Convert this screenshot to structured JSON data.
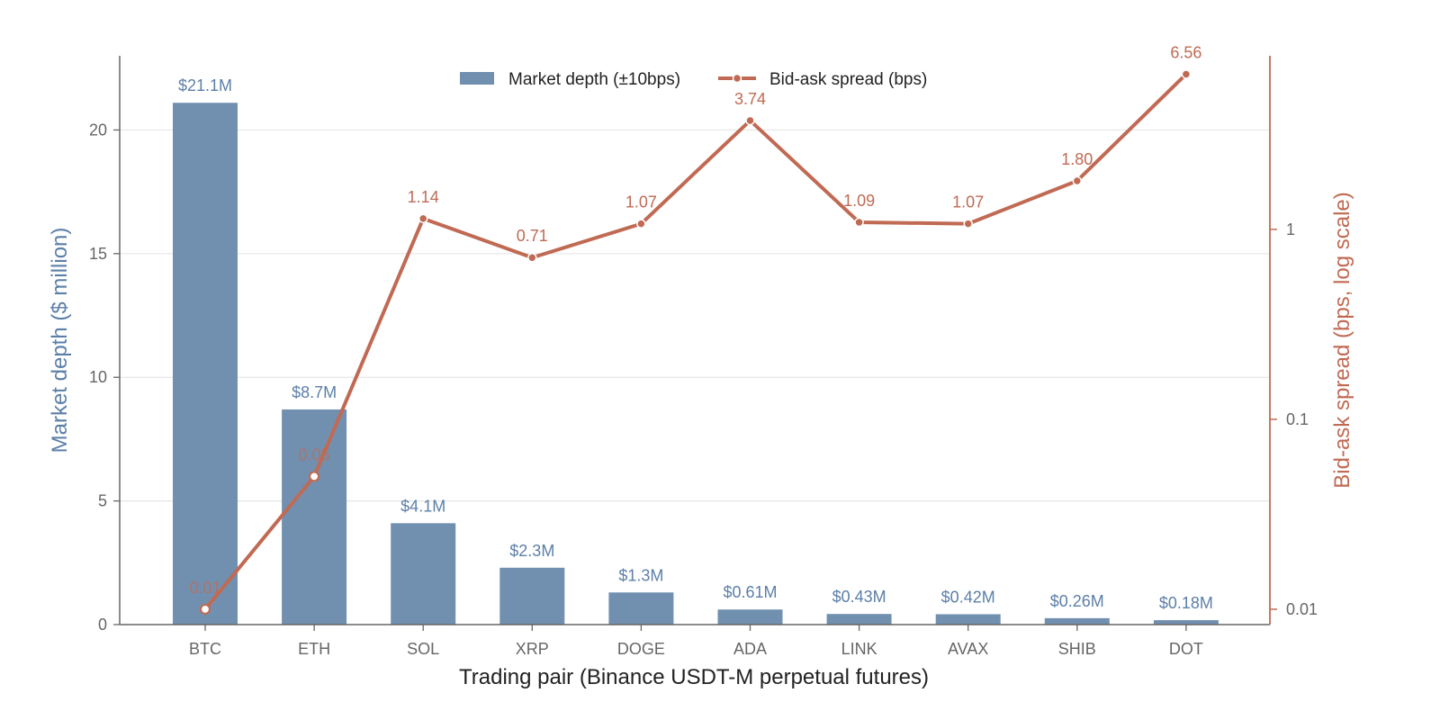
{
  "colors": {
    "depth": "#7190b0",
    "depth_text": "#5c7fa8",
    "spread": "#c06a54",
    "axis": "#666666",
    "grid": "#e6e6e6"
  },
  "chart_data": {
    "type": "bar",
    "title": "",
    "xlabel": "Trading pair (Binance USDT-M perpetual futures)",
    "ylabel_left": "Market depth ($ million)",
    "ylabel_right": "Bid-ask spread (bps, log scale)",
    "categories": [
      "BTC",
      "ETH",
      "SOL",
      "XRP",
      "DOGE",
      "ADA",
      "LINK",
      "AVAX",
      "SHIB",
      "DOT"
    ],
    "ylim_left": [
      0,
      23
    ],
    "yticks_left": [
      0,
      5,
      10,
      15,
      20
    ],
    "ylim_right_log": [
      0.0083,
      8.2
    ],
    "yticks_right": [
      {
        "value": 0.01,
        "label": "0.01"
      },
      {
        "value": 0.1,
        "label": "0.1"
      },
      {
        "value": 1,
        "label": "1"
      }
    ],
    "grid": "horizontal",
    "legend_position": "top-center",
    "series": [
      {
        "name": "Market depth (±10bps)",
        "type": "bar",
        "axis": "left",
        "values": [
          21.1,
          8.7,
          4.1,
          2.3,
          1.3,
          0.61,
          0.43,
          0.42,
          0.26,
          0.18
        ],
        "labels": [
          "$21.1M",
          "$8.7M",
          "$4.1M",
          "$2.3M",
          "$1.3M",
          "$0.61M",
          "$0.43M",
          "$0.42M",
          "$0.26M",
          "$0.18M"
        ]
      },
      {
        "name": "Bid-ask spread (bps)",
        "type": "line",
        "axis": "right",
        "scale": "log",
        "values": [
          0.01,
          0.05,
          1.14,
          0.71,
          1.07,
          3.74,
          1.09,
          1.07,
          1.8,
          6.56
        ],
        "labels": [
          "0.01",
          "0.05",
          "1.14",
          "0.71",
          "1.07",
          "3.74",
          "1.09",
          "1.07",
          "1.80",
          "6.56"
        ]
      }
    ]
  }
}
